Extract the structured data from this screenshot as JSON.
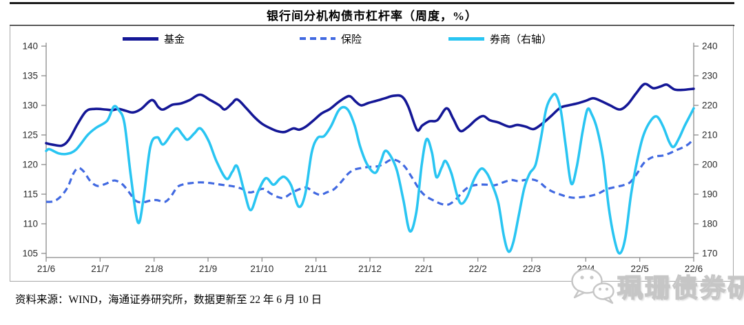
{
  "title": "银行间分机构债市杠杆率（周度，%）",
  "legend": [
    {
      "label": "基金",
      "color": "#141796",
      "style": "solid",
      "axis": "left"
    },
    {
      "label": "保险",
      "color": "#4169E1",
      "style": "dashed",
      "axis": "left"
    },
    {
      "label": "券商（右轴）",
      "color": "#29C5F2",
      "style": "solid",
      "axis": "right"
    }
  ],
  "source_note": "资料来源：WIND，海通证券研究所，数据更新至 22 年 6 月 10 日",
  "watermark": {
    "icon": "wechat-icon",
    "text": "珮珊债券研究"
  },
  "chart_data": {
    "type": "line",
    "title": "银行间分机构债市杠杆率（周度，%）",
    "x_unit": "months, weekly observations from 21/6 to 22/6 (x = months since 21/6)",
    "x_ticks": [
      "21/6",
      "21/7",
      "21/8",
      "21/9",
      "21/10",
      "21/11",
      "21/12",
      "22/1",
      "22/2",
      "22/3",
      "22/4",
      "22/5",
      "22/6"
    ],
    "left_axis": {
      "min": 105,
      "max": 140,
      "step": 5,
      "tick_labels": [
        "140",
        "135",
        "130",
        "125",
        "120",
        "115",
        "110",
        "105"
      ]
    },
    "right_axis": {
      "min": 170,
      "max": 240,
      "step": 10,
      "tick_labels": [
        "240",
        "230",
        "220",
        "210",
        "200",
        "190",
        "180",
        "170"
      ]
    },
    "grid": false,
    "legend_position": "top",
    "series": [
      {
        "name": "基金",
        "axis": "left",
        "style": "solid",
        "color": "#141796",
        "width": 3.6,
        "points": [
          [
            0,
            123.6
          ],
          [
            0.1,
            123.4
          ],
          [
            0.29,
            123.2
          ],
          [
            0.42,
            124.2
          ],
          [
            0.58,
            126.8
          ],
          [
            0.74,
            129
          ],
          [
            0.9,
            129.4
          ],
          [
            1.09,
            129.3
          ],
          [
            1.23,
            129.2
          ],
          [
            1.34,
            129.4
          ],
          [
            1.47,
            129.1
          ],
          [
            1.61,
            128.8
          ],
          [
            1.76,
            129.4
          ],
          [
            1.96,
            130.9
          ],
          [
            2.08,
            129.7
          ],
          [
            2.17,
            129.3
          ],
          [
            2.34,
            130.1
          ],
          [
            2.49,
            130.3
          ],
          [
            2.66,
            130.9
          ],
          [
            2.85,
            131.8
          ],
          [
            3.04,
            130.9
          ],
          [
            3.21,
            130
          ],
          [
            3.31,
            129.3
          ],
          [
            3.44,
            130.3
          ],
          [
            3.54,
            131
          ],
          [
            3.7,
            129.6
          ],
          [
            3.85,
            128.1
          ],
          [
            4,
            126.9
          ],
          [
            4.16,
            126.1
          ],
          [
            4.3,
            125.6
          ],
          [
            4.42,
            125.5
          ],
          [
            4.58,
            126.1
          ],
          [
            4.69,
            125.9
          ],
          [
            4.81,
            126.4
          ],
          [
            4.96,
            127.5
          ],
          [
            5.1,
            128.6
          ],
          [
            5.26,
            129.4
          ],
          [
            5.41,
            130.5
          ],
          [
            5.56,
            131.4
          ],
          [
            5.64,
            131.5
          ],
          [
            5.74,
            130.6
          ],
          [
            5.84,
            130
          ],
          [
            5.97,
            130.4
          ],
          [
            6.13,
            130.8
          ],
          [
            6.28,
            131.2
          ],
          [
            6.43,
            131.6
          ],
          [
            6.59,
            131.5
          ],
          [
            6.71,
            129.8
          ],
          [
            6.87,
            125.9
          ],
          [
            6.97,
            126.6
          ],
          [
            7.1,
            127.3
          ],
          [
            7.25,
            127.5
          ],
          [
            7.42,
            129.5
          ],
          [
            7.54,
            127.8
          ],
          [
            7.67,
            125.7
          ],
          [
            7.81,
            126.3
          ],
          [
            7.97,
            127.6
          ],
          [
            8.1,
            128.2
          ],
          [
            8.22,
            127.5
          ],
          [
            8.38,
            127.1
          ],
          [
            8.58,
            126.4
          ],
          [
            8.73,
            126.7
          ],
          [
            8.89,
            126.4
          ],
          [
            9.04,
            126
          ],
          [
            9.22,
            127.1
          ],
          [
            9.37,
            128.3
          ],
          [
            9.53,
            129.6
          ],
          [
            9.68,
            130
          ],
          [
            9.83,
            130.3
          ],
          [
            10.01,
            130.8
          ],
          [
            10.14,
            131.2
          ],
          [
            10.29,
            130.7
          ],
          [
            10.45,
            130
          ],
          [
            10.63,
            129.3
          ],
          [
            10.78,
            130.2
          ],
          [
            10.93,
            132
          ],
          [
            11.09,
            133.6
          ],
          [
            11.25,
            132.9
          ],
          [
            11.39,
            133.2
          ],
          [
            11.5,
            133.5
          ],
          [
            11.64,
            132.7
          ],
          [
            11.78,
            132.6
          ],
          [
            12,
            132.8
          ]
        ]
      },
      {
        "name": "保险",
        "axis": "left",
        "style": "dashed",
        "color": "#4169E1",
        "width": 3.2,
        "points": [
          [
            0,
            113.7
          ],
          [
            0.14,
            113.8
          ],
          [
            0.27,
            114.6
          ],
          [
            0.4,
            116.2
          ],
          [
            0.5,
            118.4
          ],
          [
            0.59,
            119.4
          ],
          [
            0.69,
            118.9
          ],
          [
            0.82,
            117.2
          ],
          [
            0.95,
            116.4
          ],
          [
            1.09,
            116.7
          ],
          [
            1.19,
            117.1
          ],
          [
            1.28,
            117.3
          ],
          [
            1.41,
            116.7
          ],
          [
            1.53,
            115.4
          ],
          [
            1.66,
            113.9
          ],
          [
            1.79,
            113.6
          ],
          [
            1.92,
            113.9
          ],
          [
            2.05,
            114
          ],
          [
            2.2,
            113.7
          ],
          [
            2.31,
            114.6
          ],
          [
            2.43,
            116.2
          ],
          [
            2.56,
            116.7
          ],
          [
            2.71,
            116.9
          ],
          [
            2.86,
            117
          ],
          [
            3.02,
            116.9
          ],
          [
            3.17,
            116.7
          ],
          [
            3.32,
            116.5
          ],
          [
            3.48,
            116.3
          ],
          [
            3.63,
            115.9
          ],
          [
            3.77,
            115.3
          ],
          [
            3.9,
            115.6
          ],
          [
            4.03,
            115.9
          ],
          [
            4.16,
            115.1
          ],
          [
            4.3,
            114.5
          ],
          [
            4.41,
            114.4
          ],
          [
            4.55,
            115.2
          ],
          [
            4.71,
            115.9
          ],
          [
            4.83,
            116.1
          ],
          [
            4.96,
            115.3
          ],
          [
            5.08,
            114.9
          ],
          [
            5.2,
            115.3
          ],
          [
            5.33,
            115.8
          ],
          [
            5.46,
            117
          ],
          [
            5.59,
            118.4
          ],
          [
            5.7,
            119.1
          ],
          [
            5.83,
            119.4
          ],
          [
            5.98,
            119.6
          ],
          [
            6.14,
            119.7
          ],
          [
            6.25,
            120.1
          ],
          [
            6.39,
            120.8
          ],
          [
            6.52,
            120.6
          ],
          [
            6.65,
            119.6
          ],
          [
            6.78,
            117.8
          ],
          [
            6.91,
            115.9
          ],
          [
            7.03,
            114.7
          ],
          [
            7.19,
            113.9
          ],
          [
            7.34,
            113.3
          ],
          [
            7.47,
            113.3
          ],
          [
            7.6,
            114.2
          ],
          [
            7.72,
            115.4
          ],
          [
            7.85,
            116.3
          ],
          [
            8.01,
            116.6
          ],
          [
            8.16,
            116.6
          ],
          [
            8.31,
            116.5
          ],
          [
            8.47,
            117
          ],
          [
            8.62,
            117.4
          ],
          [
            8.75,
            117.2
          ],
          [
            8.87,
            117.4
          ],
          [
            9,
            117.5
          ],
          [
            9.13,
            117.1
          ],
          [
            9.26,
            116.1
          ],
          [
            9.39,
            115.4
          ],
          [
            9.51,
            115
          ],
          [
            9.64,
            114.6
          ],
          [
            9.77,
            114.4
          ],
          [
            9.92,
            114.5
          ],
          [
            10.08,
            114.7
          ],
          [
            10.23,
            115.1
          ],
          [
            10.38,
            115.8
          ],
          [
            10.54,
            116.2
          ],
          [
            10.69,
            116.5
          ],
          [
            10.82,
            117
          ],
          [
            10.95,
            118.5
          ],
          [
            11.07,
            120.2
          ],
          [
            11.18,
            121
          ],
          [
            11.29,
            121.4
          ],
          [
            11.42,
            121.5
          ],
          [
            11.55,
            121.9
          ],
          [
            11.67,
            122.4
          ],
          [
            11.8,
            122.9
          ],
          [
            11.91,
            123.5
          ],
          [
            12,
            124.4
          ]
        ]
      },
      {
        "name": "券商（右轴）",
        "axis": "right",
        "style": "solid",
        "color": "#29C5F2",
        "width": 3.6,
        "points": [
          [
            0,
            204.6
          ],
          [
            0.06,
            205.2
          ],
          [
            0.23,
            203.8
          ],
          [
            0.38,
            203.6
          ],
          [
            0.55,
            205
          ],
          [
            0.77,
            210
          ],
          [
            0.93,
            212.5
          ],
          [
            1.13,
            214.8
          ],
          [
            1.25,
            219.5
          ],
          [
            1.34,
            218.5
          ],
          [
            1.45,
            214
          ],
          [
            1.57,
            196
          ],
          [
            1.7,
            180.5
          ],
          [
            1.8,
            188
          ],
          [
            1.93,
            206
          ],
          [
            2.06,
            209.2
          ],
          [
            2.17,
            206.8
          ],
          [
            2.34,
            210.8
          ],
          [
            2.43,
            212.2
          ],
          [
            2.53,
            210
          ],
          [
            2.62,
            208.4
          ],
          [
            2.75,
            210.6
          ],
          [
            2.86,
            212.2
          ],
          [
            3.01,
            208
          ],
          [
            3.16,
            201
          ],
          [
            3.34,
            195.2
          ],
          [
            3.45,
            197.6
          ],
          [
            3.54,
            199.4
          ],
          [
            3.67,
            191
          ],
          [
            3.79,
            184.6
          ],
          [
            3.93,
            191
          ],
          [
            4.07,
            195.4
          ],
          [
            4.21,
            193.2
          ],
          [
            4.33,
            195.2
          ],
          [
            4.42,
            195.8
          ],
          [
            4.54,
            193
          ],
          [
            4.68,
            185.8
          ],
          [
            4.8,
            190
          ],
          [
            4.92,
            204
          ],
          [
            5.03,
            209
          ],
          [
            5.15,
            209.6
          ],
          [
            5.28,
            213
          ],
          [
            5.41,
            218
          ],
          [
            5.51,
            219.4
          ],
          [
            5.61,
            218
          ],
          [
            5.72,
            213
          ],
          [
            5.82,
            206
          ],
          [
            5.95,
            200
          ],
          [
            6.1,
            197.2
          ],
          [
            6.2,
            201
          ],
          [
            6.28,
            204.6
          ],
          [
            6.38,
            203
          ],
          [
            6.5,
            198
          ],
          [
            6.62,
            188
          ],
          [
            6.74,
            177.5
          ],
          [
            6.86,
            184
          ],
          [
            6.96,
            200
          ],
          [
            7.05,
            208.6
          ],
          [
            7.15,
            204
          ],
          [
            7.23,
            195.8
          ],
          [
            7.33,
            199
          ],
          [
            7.4,
            201.2
          ],
          [
            7.51,
            197
          ],
          [
            7.61,
            190
          ],
          [
            7.69,
            186.8
          ],
          [
            7.8,
            189
          ],
          [
            7.93,
            195
          ],
          [
            8.06,
            198.6
          ],
          [
            8.17,
            197
          ],
          [
            8.27,
            193
          ],
          [
            8.38,
            187
          ],
          [
            8.48,
            176
          ],
          [
            8.57,
            170.6
          ],
          [
            8.66,
            174
          ],
          [
            8.76,
            183
          ],
          [
            8.86,
            192
          ],
          [
            8.96,
            197
          ],
          [
            9.07,
            200
          ],
          [
            9.17,
            209
          ],
          [
            9.27,
            219
          ],
          [
            9.37,
            223
          ],
          [
            9.45,
            223.4
          ],
          [
            9.54,
            218
          ],
          [
            9.63,
            206
          ],
          [
            9.73,
            193.6
          ],
          [
            9.83,
            199
          ],
          [
            9.94,
            211
          ],
          [
            10.03,
            218.6
          ],
          [
            10.11,
            217
          ],
          [
            10.21,
            212
          ],
          [
            10.32,
            202
          ],
          [
            10.43,
            185
          ],
          [
            10.54,
            174
          ],
          [
            10.63,
            170
          ],
          [
            10.73,
            175
          ],
          [
            10.84,
            190
          ],
          [
            10.96,
            202
          ],
          [
            11.07,
            210
          ],
          [
            11.21,
            215
          ],
          [
            11.32,
            216.2
          ],
          [
            11.43,
            213
          ],
          [
            11.55,
            207.5
          ],
          [
            11.63,
            206
          ],
          [
            11.73,
            209
          ],
          [
            11.83,
            213
          ],
          [
            11.93,
            216.5
          ],
          [
            12,
            219
          ]
        ]
      }
    ]
  }
}
